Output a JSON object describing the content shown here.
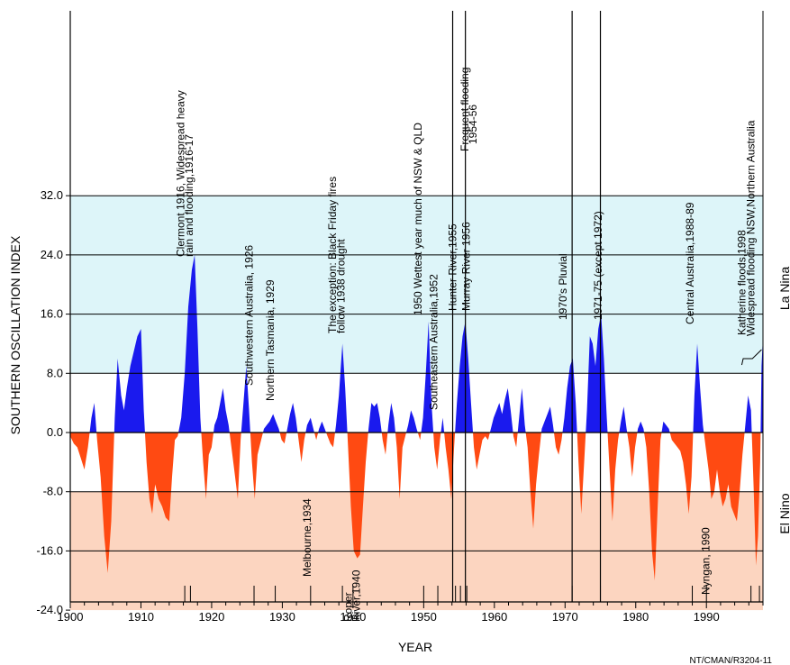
{
  "chart_data": {
    "type": "area",
    "ylabel": "SOUTHERN OSCILLATION INDEX",
    "xlabel": "YEAR",
    "xlim": [
      1900,
      1998
    ],
    "ylim": [
      -24,
      32
    ],
    "x_ticks": [
      "1900",
      "1910",
      "1920",
      "1930",
      "1940",
      "1950",
      "1960",
      "1970",
      "1980",
      "1990"
    ],
    "y_ticks": [
      "-24.0",
      "-16.0",
      "-8.0",
      "0.0",
      "8.0",
      "16.0",
      "24.0",
      "32.0"
    ],
    "bands": [
      {
        "name": "La Nina",
        "from": 8,
        "to": 32,
        "color": "#ddf5f9"
      },
      {
        "name": "El Nino",
        "from": -24,
        "to": -8,
        "color": "#fcd5c0"
      }
    ],
    "colors": {
      "positive": "#1a1aee",
      "negative": "#ff4a12"
    },
    "side_labels": {
      "la_nina": "La Nina",
      "el_nino": "El Nino"
    },
    "source_code": "NT/CMAN/R3204-11",
    "vertical_lines": [
      1954.1,
      1955.9,
      1971.0,
      1975.0
    ],
    "event_ticks": [
      1916.2,
      1917.0,
      1926.0,
      1929.0,
      1934.0,
      1938.5,
      1940.0,
      1950.0,
      1952.0,
      1954.5,
      1955.2,
      1956.1,
      1971.0,
      1975.0,
      1988.0,
      1990.0,
      1996.3,
      1997.5
    ],
    "annotations": [
      {
        "text": "Clermont 1916,  Widespread heavy",
        "year": 1916.1
      },
      {
        "text": "rain and flooding,1916-17",
        "year": 1917.3
      },
      {
        "text": "Southwestern Australia, 1926",
        "year": 1925.8
      },
      {
        "text": "Northern Tasmania, 1929",
        "year": 1928.8
      },
      {
        "text": "Melbourne,1934",
        "year": 1934.0
      },
      {
        "text": "The exception: Black Friday fires",
        "year": 1937.6
      },
      {
        "text": "follow 1938 drought",
        "year": 1938.8
      },
      {
        "text": "Roper",
        "year": 1939.8
      },
      {
        "text": "River,1940",
        "year": 1941.0
      },
      {
        "text": "1950 Wettest year much of NSW & QLD",
        "year": 1949.7
      },
      {
        "text": "Southeastern Australia,1952",
        "year": 1951.9
      },
      {
        "text": "Hunter River,1955",
        "year": 1954.6
      },
      {
        "text": "Frequent flooding",
        "year": 1956.3
      },
      {
        "text": "1954-56",
        "year": 1957.5
      },
      {
        "text": "Murray River 1956",
        "year": 1956.5
      },
      {
        "text": "1970's Pluvial",
        "year": 1970.2
      },
      {
        "text": "1971-75 (except 1972)",
        "year": 1975.2
      },
      {
        "text": "Central Australia,1988-89",
        "year": 1988.2
      },
      {
        "text": "Nyngan, 1990",
        "year": 1990.4
      },
      {
        "text": "Katherine floods,1998",
        "year": 1995.5
      },
      {
        "text": "Widespread flooding NSW,Northern Australia",
        "year": 1996.8
      }
    ],
    "series": [
      {
        "x": 1900.0,
        "y": -0.5
      },
      {
        "x": 1900.5,
        "y": -1.5
      },
      {
        "x": 1901.0,
        "y": -2.0
      },
      {
        "x": 1901.5,
        "y": -3.5
      },
      {
        "x": 1902.0,
        "y": -5.0
      },
      {
        "x": 1902.5,
        "y": -2.0
      },
      {
        "x": 1903.0,
        "y": 2.0
      },
      {
        "x": 1903.4,
        "y": 4.0
      },
      {
        "x": 1903.8,
        "y": -1.0
      },
      {
        "x": 1904.3,
        "y": -6.0
      },
      {
        "x": 1904.8,
        "y": -14.0
      },
      {
        "x": 1905.3,
        "y": -19.0
      },
      {
        "x": 1905.8,
        "y": -12.0
      },
      {
        "x": 1906.3,
        "y": 2.0
      },
      {
        "x": 1906.7,
        "y": 10.0
      },
      {
        "x": 1907.2,
        "y": 5.0
      },
      {
        "x": 1907.6,
        "y": 3.0
      },
      {
        "x": 1908.0,
        "y": 6.0
      },
      {
        "x": 1908.5,
        "y": 9.0
      },
      {
        "x": 1909.0,
        "y": 11.0
      },
      {
        "x": 1909.5,
        "y": 13.0
      },
      {
        "x": 1910.0,
        "y": 14.0
      },
      {
        "x": 1910.4,
        "y": 3.0
      },
      {
        "x": 1910.8,
        "y": -4.0
      },
      {
        "x": 1911.2,
        "y": -9.0
      },
      {
        "x": 1911.6,
        "y": -11.0
      },
      {
        "x": 1912.0,
        "y": -7.0
      },
      {
        "x": 1912.5,
        "y": -9.0
      },
      {
        "x": 1913.0,
        "y": -10.0
      },
      {
        "x": 1913.5,
        "y": -11.5
      },
      {
        "x": 1914.0,
        "y": -12.0
      },
      {
        "x": 1914.4,
        "y": -6.0
      },
      {
        "x": 1914.8,
        "y": -1.0
      },
      {
        "x": 1915.2,
        "y": -0.5
      },
      {
        "x": 1915.7,
        "y": 2.0
      },
      {
        "x": 1916.2,
        "y": 8.0
      },
      {
        "x": 1916.7,
        "y": 17.0
      },
      {
        "x": 1917.2,
        "y": 22.0
      },
      {
        "x": 1917.6,
        "y": 24.0
      },
      {
        "x": 1918.0,
        "y": 14.0
      },
      {
        "x": 1918.4,
        "y": 2.0
      },
      {
        "x": 1918.8,
        "y": -4.0
      },
      {
        "x": 1919.2,
        "y": -9.0
      },
      {
        "x": 1919.6,
        "y": -3.0
      },
      {
        "x": 1920.0,
        "y": -2.0
      },
      {
        "x": 1920.4,
        "y": 1.0
      },
      {
        "x": 1920.8,
        "y": 2.0
      },
      {
        "x": 1921.2,
        "y": 4.0
      },
      {
        "x": 1921.6,
        "y": 6.0
      },
      {
        "x": 1922.0,
        "y": 3.0
      },
      {
        "x": 1922.4,
        "y": 1.0
      },
      {
        "x": 1922.8,
        "y": -2.0
      },
      {
        "x": 1923.2,
        "y": -5.0
      },
      {
        "x": 1923.7,
        "y": -9.0
      },
      {
        "x": 1924.1,
        "y": -1.0
      },
      {
        "x": 1924.5,
        "y": 4.0
      },
      {
        "x": 1924.9,
        "y": 9.0
      },
      {
        "x": 1925.3,
        "y": 3.0
      },
      {
        "x": 1925.7,
        "y": -4.0
      },
      {
        "x": 1926.1,
        "y": -9.0
      },
      {
        "x": 1926.5,
        "y": -3.0
      },
      {
        "x": 1927.0,
        "y": -1.0
      },
      {
        "x": 1927.4,
        "y": 0.5
      },
      {
        "x": 1927.8,
        "y": 1.0
      },
      {
        "x": 1928.2,
        "y": 1.5
      },
      {
        "x": 1928.7,
        "y": 2.5
      },
      {
        "x": 1929.1,
        "y": 1.5
      },
      {
        "x": 1929.5,
        "y": 0.5
      },
      {
        "x": 1929.9,
        "y": -1.0
      },
      {
        "x": 1930.3,
        "y": -1.5
      },
      {
        "x": 1930.7,
        "y": 0.5
      },
      {
        "x": 1931.1,
        "y": 2.5
      },
      {
        "x": 1931.5,
        "y": 4.0
      },
      {
        "x": 1931.9,
        "y": 2.0
      },
      {
        "x": 1932.3,
        "y": -1.0
      },
      {
        "x": 1932.7,
        "y": -4.0
      },
      {
        "x": 1933.1,
        "y": -1.0
      },
      {
        "x": 1933.5,
        "y": 1.0
      },
      {
        "x": 1934.0,
        "y": 2.0
      },
      {
        "x": 1934.4,
        "y": 0.5
      },
      {
        "x": 1934.8,
        "y": -1.0
      },
      {
        "x": 1935.2,
        "y": 0.5
      },
      {
        "x": 1935.6,
        "y": 1.5
      },
      {
        "x": 1936.0,
        "y": 0.5
      },
      {
        "x": 1936.4,
        "y": -0.5
      },
      {
        "x": 1936.8,
        "y": -1.5
      },
      {
        "x": 1937.2,
        "y": -2.0
      },
      {
        "x": 1937.6,
        "y": 1.0
      },
      {
        "x": 1938.0,
        "y": 5.0
      },
      {
        "x": 1938.5,
        "y": 12.0
      },
      {
        "x": 1938.9,
        "y": 6.0
      },
      {
        "x": 1939.3,
        "y": -2.0
      },
      {
        "x": 1939.7,
        "y": -10.0
      },
      {
        "x": 1940.1,
        "y": -16.0
      },
      {
        "x": 1940.6,
        "y": -17.0
      },
      {
        "x": 1941.0,
        "y": -16.5
      },
      {
        "x": 1941.4,
        "y": -10.0
      },
      {
        "x": 1941.8,
        "y": -4.0
      },
      {
        "x": 1942.2,
        "y": 0.5
      },
      {
        "x": 1942.6,
        "y": 4.0
      },
      {
        "x": 1943.0,
        "y": 3.5
      },
      {
        "x": 1943.4,
        "y": 4.0
      },
      {
        "x": 1943.8,
        "y": 2.0
      },
      {
        "x": 1944.2,
        "y": -1.0
      },
      {
        "x": 1944.6,
        "y": -3.0
      },
      {
        "x": 1945.0,
        "y": 1.0
      },
      {
        "x": 1945.4,
        "y": 4.0
      },
      {
        "x": 1945.8,
        "y": 2.0
      },
      {
        "x": 1946.2,
        "y": -2.0
      },
      {
        "x": 1946.6,
        "y": -9.0
      },
      {
        "x": 1947.0,
        "y": -2.0
      },
      {
        "x": 1947.4,
        "y": -0.5
      },
      {
        "x": 1947.8,
        "y": 1.0
      },
      {
        "x": 1948.2,
        "y": 3.0
      },
      {
        "x": 1948.6,
        "y": 2.0
      },
      {
        "x": 1949.0,
        "y": 0.5
      },
      {
        "x": 1949.5,
        "y": -1.0
      },
      {
        "x": 1949.9,
        "y": 2.0
      },
      {
        "x": 1950.3,
        "y": 8.0
      },
      {
        "x": 1950.7,
        "y": 15.0
      },
      {
        "x": 1951.1,
        "y": 4.0
      },
      {
        "x": 1951.5,
        "y": -2.0
      },
      {
        "x": 1951.9,
        "y": -5.0
      },
      {
        "x": 1952.3,
        "y": -1.0
      },
      {
        "x": 1952.7,
        "y": 2.0
      },
      {
        "x": 1953.1,
        "y": -2.0
      },
      {
        "x": 1953.5,
        "y": -5.0
      },
      {
        "x": 1953.9,
        "y": -9.0
      },
      {
        "x": 1954.3,
        "y": -2.0
      },
      {
        "x": 1954.7,
        "y": 4.0
      },
      {
        "x": 1955.1,
        "y": 9.0
      },
      {
        "x": 1955.5,
        "y": 13.0
      },
      {
        "x": 1955.9,
        "y": 15.0
      },
      {
        "x": 1956.3,
        "y": 10.0
      },
      {
        "x": 1956.7,
        "y": 4.0
      },
      {
        "x": 1957.1,
        "y": -2.0
      },
      {
        "x": 1957.5,
        "y": -5.0
      },
      {
        "x": 1957.9,
        "y": -3.0
      },
      {
        "x": 1958.3,
        "y": -1.0
      },
      {
        "x": 1958.7,
        "y": -0.5
      },
      {
        "x": 1959.1,
        "y": -1.0
      },
      {
        "x": 1959.5,
        "y": 0.5
      },
      {
        "x": 1959.9,
        "y": 2.0
      },
      {
        "x": 1960.3,
        "y": 3.0
      },
      {
        "x": 1960.7,
        "y": 4.0
      },
      {
        "x": 1961.1,
        "y": 2.5
      },
      {
        "x": 1961.5,
        "y": 4.5
      },
      {
        "x": 1961.9,
        "y": 6.0
      },
      {
        "x": 1962.3,
        "y": 3.0
      },
      {
        "x": 1962.7,
        "y": -0.5
      },
      {
        "x": 1963.1,
        "y": -2.0
      },
      {
        "x": 1963.5,
        "y": 2.0
      },
      {
        "x": 1963.9,
        "y": 6.0
      },
      {
        "x": 1964.3,
        "y": 1.0
      },
      {
        "x": 1964.7,
        "y": -2.0
      },
      {
        "x": 1965.1,
        "y": -8.0
      },
      {
        "x": 1965.5,
        "y": -13.0
      },
      {
        "x": 1965.9,
        "y": -7.0
      },
      {
        "x": 1966.3,
        "y": -3.0
      },
      {
        "x": 1966.7,
        "y": 0.5
      },
      {
        "x": 1967.1,
        "y": 1.5
      },
      {
        "x": 1967.5,
        "y": 2.5
      },
      {
        "x": 1967.9,
        "y": 3.5
      },
      {
        "x": 1968.3,
        "y": 1.0
      },
      {
        "x": 1968.7,
        "y": -2.0
      },
      {
        "x": 1969.1,
        "y": -3.0
      },
      {
        "x": 1969.5,
        "y": -1.0
      },
      {
        "x": 1969.9,
        "y": 2.0
      },
      {
        "x": 1970.3,
        "y": 6.0
      },
      {
        "x": 1970.7,
        "y": 9.0
      },
      {
        "x": 1971.1,
        "y": 10.0
      },
      {
        "x": 1971.5,
        "y": 4.0
      },
      {
        "x": 1971.9,
        "y": -4.0
      },
      {
        "x": 1972.3,
        "y": -11.0
      },
      {
        "x": 1972.7,
        "y": -4.0
      },
      {
        "x": 1973.1,
        "y": 3.0
      },
      {
        "x": 1973.5,
        "y": 13.0
      },
      {
        "x": 1973.9,
        "y": 12.0
      },
      {
        "x": 1974.3,
        "y": 9.0
      },
      {
        "x": 1974.7,
        "y": 14.0
      },
      {
        "x": 1975.1,
        "y": 16.0
      },
      {
        "x": 1975.5,
        "y": 10.0
      },
      {
        "x": 1975.9,
        "y": 2.0
      },
      {
        "x": 1976.3,
        "y": -5.0
      },
      {
        "x": 1976.7,
        "y": -12.0
      },
      {
        "x": 1977.1,
        "y": -5.0
      },
      {
        "x": 1977.5,
        "y": -1.0
      },
      {
        "x": 1977.9,
        "y": 1.5
      },
      {
        "x": 1978.3,
        "y": 3.5
      },
      {
        "x": 1978.7,
        "y": 0.5
      },
      {
        "x": 1979.1,
        "y": -2.0
      },
      {
        "x": 1979.5,
        "y": -6.0
      },
      {
        "x": 1979.9,
        "y": -2.0
      },
      {
        "x": 1980.3,
        "y": 0.5
      },
      {
        "x": 1980.7,
        "y": 1.5
      },
      {
        "x": 1981.1,
        "y": 0.5
      },
      {
        "x": 1981.5,
        "y": -2.0
      },
      {
        "x": 1981.9,
        "y": -8.0
      },
      {
        "x": 1982.3,
        "y": -16.0
      },
      {
        "x": 1982.7,
        "y": -20.0
      },
      {
        "x": 1983.1,
        "y": -10.0
      },
      {
        "x": 1983.5,
        "y": -1.0
      },
      {
        "x": 1983.9,
        "y": 1.5
      },
      {
        "x": 1984.3,
        "y": 1.0
      },
      {
        "x": 1984.7,
        "y": 0.5
      },
      {
        "x": 1985.1,
        "y": -1.0
      },
      {
        "x": 1985.5,
        "y": -1.5
      },
      {
        "x": 1985.9,
        "y": -2.0
      },
      {
        "x": 1986.3,
        "y": -2.5
      },
      {
        "x": 1986.7,
        "y": -4.0
      },
      {
        "x": 1987.1,
        "y": -7.0
      },
      {
        "x": 1987.5,
        "y": -11.0
      },
      {
        "x": 1987.9,
        "y": -6.0
      },
      {
        "x": 1988.3,
        "y": 5.0
      },
      {
        "x": 1988.7,
        "y": 12.0
      },
      {
        "x": 1989.1,
        "y": 6.0
      },
      {
        "x": 1989.5,
        "y": 1.0
      },
      {
        "x": 1989.9,
        "y": -2.0
      },
      {
        "x": 1990.3,
        "y": -5.0
      },
      {
        "x": 1990.7,
        "y": -9.0
      },
      {
        "x": 1991.1,
        "y": -8.0
      },
      {
        "x": 1991.5,
        "y": -5.0
      },
      {
        "x": 1991.9,
        "y": -8.0
      },
      {
        "x": 1992.3,
        "y": -10.0
      },
      {
        "x": 1992.7,
        "y": -9.0
      },
      {
        "x": 1993.1,
        "y": -7.0
      },
      {
        "x": 1993.5,
        "y": -10.0
      },
      {
        "x": 1993.9,
        "y": -11.0
      },
      {
        "x": 1994.3,
        "y": -12.0
      },
      {
        "x": 1994.7,
        "y": -8.0
      },
      {
        "x": 1995.1,
        "y": -3.0
      },
      {
        "x": 1995.5,
        "y": 1.0
      },
      {
        "x": 1995.9,
        "y": 5.0
      },
      {
        "x": 1996.3,
        "y": 3.0
      },
      {
        "x": 1996.7,
        "y": -8.0
      },
      {
        "x": 1997.0,
        "y": -18.0
      },
      {
        "x": 1997.3,
        "y": -14.0
      },
      {
        "x": 1997.6,
        "y": -4.0
      },
      {
        "x": 1997.8,
        "y": 9.0
      },
      {
        "x": 1998.0,
        "y": 13.0
      }
    ]
  }
}
